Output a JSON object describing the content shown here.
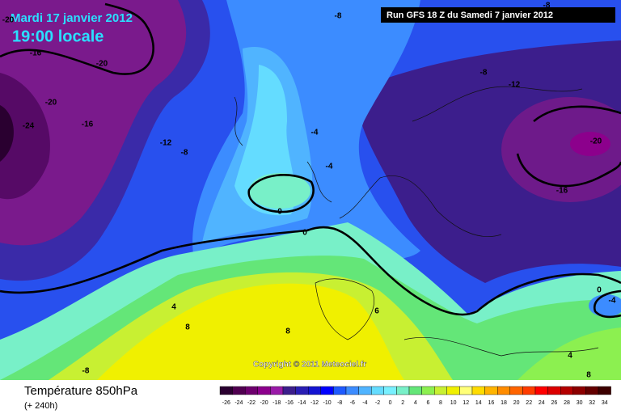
{
  "header": {
    "date": "Mardi 17 janvier 2012",
    "time": "19:00 locale",
    "run": "Run GFS 18 Z du Samedi 7 janvier 2012"
  },
  "copyright": "Copyright © 2011 Meteociel.fr",
  "footer": {
    "title": "Température 850hPa",
    "lead": "(+ 240h)"
  },
  "legend": {
    "labels": [
      -26,
      -24,
      -22,
      -20,
      -18,
      -16,
      -14,
      -12,
      -10,
      -8,
      -6,
      -4,
      -2,
      0,
      2,
      4,
      6,
      8,
      10,
      12,
      14,
      16,
      18,
      20,
      22,
      24,
      26,
      28,
      30,
      32,
      34
    ],
    "colors": [
      "#2a0030",
      "#500050",
      "#6e006e",
      "#8c008c",
      "#9a1aa8",
      "#3c1e8c",
      "#2a1eb4",
      "#1414d2",
      "#0000ff",
      "#1e5aff",
      "#3c8cff",
      "#50b4ff",
      "#64dcff",
      "#78f0ff",
      "#78f0c8",
      "#64e678",
      "#8cf050",
      "#c8f032",
      "#f0f000",
      "#ffff78",
      "#ffdc00",
      "#ffb400",
      "#ff8c00",
      "#ff6400",
      "#ff3c00",
      "#ff0000",
      "#dc0000",
      "#b40000",
      "#8c0000",
      "#640000",
      "#3c0000"
    ]
  },
  "contour_labels": [
    -20,
    -16,
    -20,
    -20,
    -24,
    -16,
    -12,
    -8,
    -8,
    -8,
    -8,
    -12,
    -4,
    -4,
    0,
    0,
    -20,
    -16,
    0,
    -4,
    4,
    8,
    8,
    6,
    8,
    4,
    -8
  ]
}
